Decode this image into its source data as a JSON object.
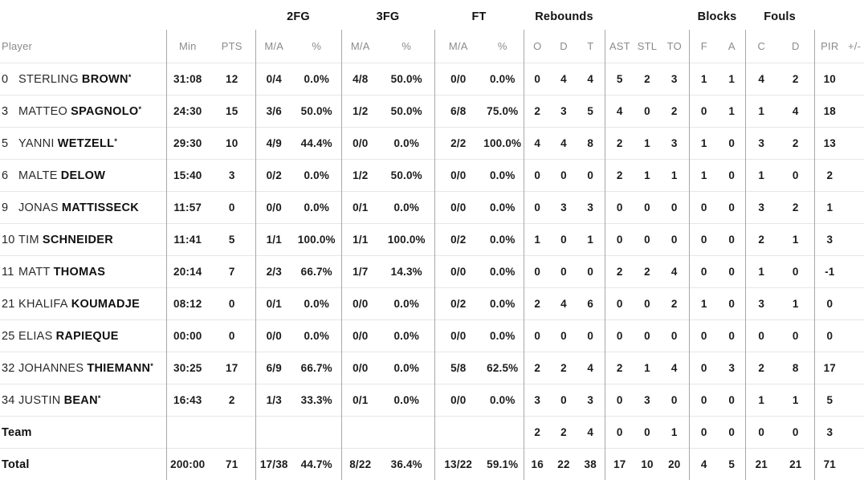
{
  "table": {
    "header_groups": [
      {
        "label": "",
        "span": 3
      },
      {
        "label": "2FG",
        "span": 2
      },
      {
        "label": "3FG",
        "span": 2
      },
      {
        "label": "FT",
        "span": 2
      },
      {
        "label": "Rebounds",
        "span": 3
      },
      {
        "label": "",
        "span": 3
      },
      {
        "label": "Blocks",
        "span": 2
      },
      {
        "label": "Fouls",
        "span": 2
      },
      {
        "label": "",
        "span": 2
      }
    ],
    "columns": [
      "Player",
      "Min",
      "PTS",
      "M/A",
      "%",
      "M/A",
      "%",
      "M/A",
      "%",
      "O",
      "D",
      "T",
      "AST",
      "STL",
      "TO",
      "F",
      "A",
      "C",
      "D",
      "PIR",
      "+/-"
    ],
    "rows": [
      {
        "no": "0",
        "first": "STERLING",
        "last": "BROWN",
        "starter": true,
        "stats": [
          "31:08",
          "12",
          "0/4",
          "0.0%",
          "4/8",
          "50.0%",
          "0/0",
          "0.0%",
          "0",
          "4",
          "4",
          "5",
          "2",
          "3",
          "1",
          "1",
          "4",
          "2",
          "10",
          ""
        ]
      },
      {
        "no": "3",
        "first": "MATTEO",
        "last": "SPAGNOLO",
        "starter": true,
        "stats": [
          "24:30",
          "15",
          "3/6",
          "50.0%",
          "1/2",
          "50.0%",
          "6/8",
          "75.0%",
          "2",
          "3",
          "5",
          "4",
          "0",
          "2",
          "0",
          "1",
          "1",
          "4",
          "18",
          ""
        ]
      },
      {
        "no": "5",
        "first": "YANNI",
        "last": "WETZELL",
        "starter": true,
        "stats": [
          "29:30",
          "10",
          "4/9",
          "44.4%",
          "0/0",
          "0.0%",
          "2/2",
          "100.0%",
          "4",
          "4",
          "8",
          "2",
          "1",
          "3",
          "1",
          "0",
          "3",
          "2",
          "13",
          ""
        ]
      },
      {
        "no": "6",
        "first": "MALTE",
        "last": "DELOW",
        "starter": false,
        "stats": [
          "15:40",
          "3",
          "0/2",
          "0.0%",
          "1/2",
          "50.0%",
          "0/0",
          "0.0%",
          "0",
          "0",
          "0",
          "2",
          "1",
          "1",
          "1",
          "0",
          "1",
          "0",
          "2",
          ""
        ]
      },
      {
        "no": "9",
        "first": "JONAS",
        "last": "MATTISSECK",
        "starter": false,
        "stats": [
          "11:57",
          "0",
          "0/0",
          "0.0%",
          "0/1",
          "0.0%",
          "0/0",
          "0.0%",
          "0",
          "3",
          "3",
          "0",
          "0",
          "0",
          "0",
          "0",
          "3",
          "2",
          "1",
          ""
        ]
      },
      {
        "no": "10",
        "first": "TIM",
        "last": "SCHNEIDER",
        "starter": false,
        "stats": [
          "11:41",
          "5",
          "1/1",
          "100.0%",
          "1/1",
          "100.0%",
          "0/2",
          "0.0%",
          "1",
          "0",
          "1",
          "0",
          "0",
          "0",
          "0",
          "0",
          "2",
          "1",
          "3",
          ""
        ]
      },
      {
        "no": "11",
        "first": "MATT",
        "last": "THOMAS",
        "starter": false,
        "stats": [
          "20:14",
          "7",
          "2/3",
          "66.7%",
          "1/7",
          "14.3%",
          "0/0",
          "0.0%",
          "0",
          "0",
          "0",
          "2",
          "2",
          "4",
          "0",
          "0",
          "1",
          "0",
          "-1",
          ""
        ]
      },
      {
        "no": "21",
        "first": "KHALIFA",
        "last": "KOUMADJE",
        "starter": false,
        "stats": [
          "08:12",
          "0",
          "0/1",
          "0.0%",
          "0/0",
          "0.0%",
          "0/2",
          "0.0%",
          "2",
          "4",
          "6",
          "0",
          "0",
          "2",
          "1",
          "0",
          "3",
          "1",
          "0",
          ""
        ]
      },
      {
        "no": "25",
        "first": "ELIAS",
        "last": "RAPIEQUE",
        "starter": false,
        "stats": [
          "00:00",
          "0",
          "0/0",
          "0.0%",
          "0/0",
          "0.0%",
          "0/0",
          "0.0%",
          "0",
          "0",
          "0",
          "0",
          "0",
          "0",
          "0",
          "0",
          "0",
          "0",
          "0",
          ""
        ]
      },
      {
        "no": "32",
        "first": "JOHANNES",
        "last": "THIEMANN",
        "starter": true,
        "stats": [
          "30:25",
          "17",
          "6/9",
          "66.7%",
          "0/0",
          "0.0%",
          "5/8",
          "62.5%",
          "2",
          "2",
          "4",
          "2",
          "1",
          "4",
          "0",
          "3",
          "2",
          "8",
          "17",
          ""
        ]
      },
      {
        "no": "34",
        "first": "JUSTIN",
        "last": "BEAN",
        "starter": true,
        "stats": [
          "16:43",
          "2",
          "1/3",
          "33.3%",
          "0/1",
          "0.0%",
          "0/0",
          "0.0%",
          "3",
          "0",
          "3",
          "0",
          "3",
          "0",
          "0",
          "0",
          "1",
          "1",
          "5",
          ""
        ]
      },
      {
        "label": "Team",
        "stats": [
          "",
          "",
          "",
          "",
          "",
          "",
          "",
          "",
          "2",
          "2",
          "4",
          "0",
          "0",
          "1",
          "0",
          "0",
          "0",
          "0",
          "3",
          ""
        ]
      },
      {
        "label": "Total",
        "stats": [
          "200:00",
          "71",
          "17/38",
          "44.7%",
          "8/22",
          "36.4%",
          "13/22",
          "59.1%",
          "16",
          "22",
          "38",
          "17",
          "10",
          "20",
          "4",
          "5",
          "21",
          "21",
          "71",
          ""
        ]
      }
    ],
    "starter_mark": "*"
  }
}
